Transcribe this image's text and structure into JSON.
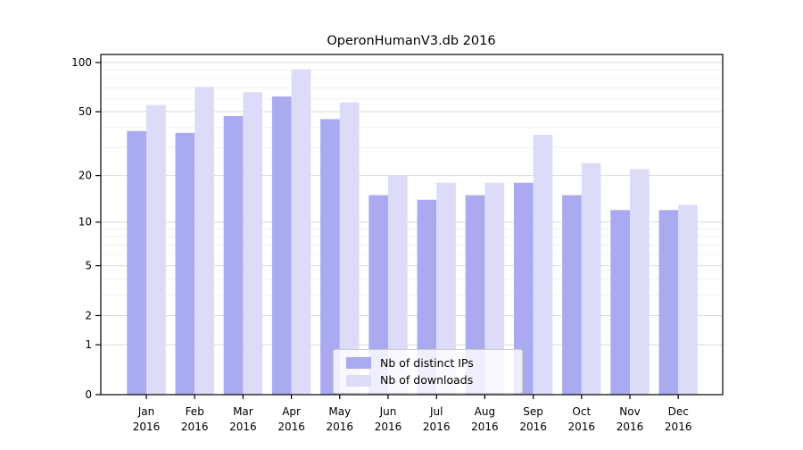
{
  "figure": {
    "background": "#ffffff"
  },
  "chart_data": {
    "type": "bar",
    "title": "OperonHumanV3.db 2016",
    "categories": [
      "Jan",
      "Feb",
      "Mar",
      "Apr",
      "May",
      "Jun",
      "Jul",
      "Aug",
      "Sep",
      "Oct",
      "Nov",
      "Dec"
    ],
    "category_year": "2016",
    "series": [
      {
        "name": "Nb of distinct IPs",
        "color": "#aaaaf0",
        "values": [
          38,
          37,
          47,
          62,
          45,
          15,
          14,
          15,
          18,
          15,
          12,
          12
        ]
      },
      {
        "name": "Nb of downloads",
        "color": "#dcdcf8",
        "values": [
          55,
          71,
          66,
          91,
          57,
          20,
          18,
          18,
          36,
          24,
          22,
          13
        ]
      }
    ],
    "xlabel": "",
    "ylabel": "",
    "yscale": "log1p",
    "ylim": [
      0,
      112
    ],
    "yticks": [
      0,
      1,
      2,
      5,
      10,
      20,
      50,
      100
    ],
    "minor_gridlines": [
      3,
      4,
      6,
      7,
      8,
      9,
      30,
      40,
      60,
      70,
      80,
      90
    ],
    "grid": true,
    "legend_position": "lower center",
    "colors": {
      "axis": "#000000",
      "text": "#000000",
      "grid_major": "#d9d9d9",
      "grid_minor": "#efefef"
    }
  }
}
